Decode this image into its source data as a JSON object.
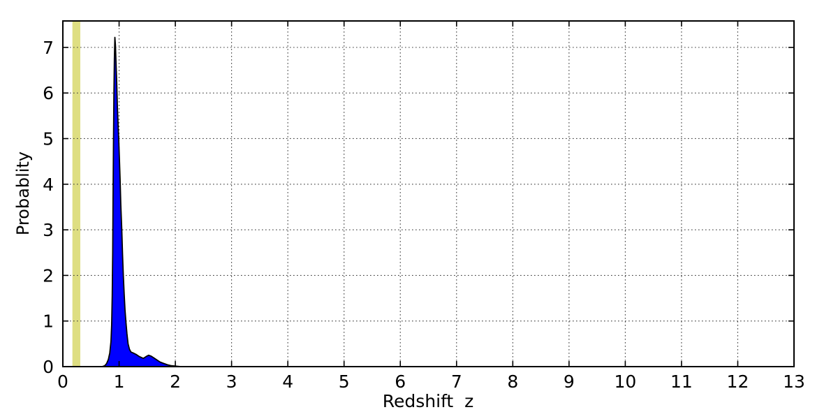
{
  "chart_data": {
    "type": "area",
    "title": "",
    "xlabel": "Redshift  z",
    "ylabel": "Probablity",
    "xlim": [
      0,
      13
    ],
    "ylim": [
      0,
      7.58
    ],
    "xticks": [
      0,
      1,
      2,
      3,
      4,
      5,
      6,
      7,
      8,
      9,
      10,
      11,
      12,
      13
    ],
    "yticks": [
      0,
      1,
      2,
      3,
      4,
      5,
      6,
      7
    ],
    "xtick_labels": [
      "0",
      "1",
      "2",
      "3",
      "4",
      "5",
      "6",
      "7",
      "8",
      "9",
      "10",
      "11",
      "12",
      "13"
    ],
    "ytick_labels": [
      "0",
      "1",
      "2",
      "3",
      "4",
      "5",
      "6",
      "7"
    ],
    "grid": {
      "visible": true,
      "style": "dotted",
      "color": "#3d3d3d",
      "x_positions": [
        1,
        2,
        3,
        4,
        5,
        6,
        7,
        8,
        9,
        10,
        11,
        12
      ],
      "y_positions": [
        1,
        2,
        3,
        4,
        5,
        6,
        7
      ]
    },
    "legend": {
      "visible": false
    },
    "series": [
      {
        "name": "redshift-probability-density",
        "type": "filled-area",
        "fill_color": "#0000ff",
        "edge_color": "#000000",
        "peak": {
          "z": 0.925,
          "probability": 7.22
        },
        "points": [
          [
            0.7,
            0.0
          ],
          [
            0.745,
            0.02
          ],
          [
            0.78,
            0.07
          ],
          [
            0.81,
            0.16
          ],
          [
            0.835,
            0.3
          ],
          [
            0.855,
            0.55
          ],
          [
            0.868,
            0.92
          ],
          [
            0.878,
            1.55
          ],
          [
            0.886,
            2.5
          ],
          [
            0.893,
            3.7
          ],
          [
            0.9,
            4.9
          ],
          [
            0.908,
            5.95
          ],
          [
            0.916,
            6.75
          ],
          [
            0.925,
            7.22
          ],
          [
            0.935,
            7.05
          ],
          [
            0.947,
            6.6
          ],
          [
            0.958,
            6.2
          ],
          [
            0.97,
            5.7
          ],
          [
            0.982,
            5.3
          ],
          [
            0.994,
            4.95
          ],
          [
            1.005,
            4.6
          ],
          [
            1.018,
            4.1
          ],
          [
            1.03,
            3.55
          ],
          [
            1.048,
            3.0
          ],
          [
            1.062,
            2.45
          ],
          [
            1.075,
            2.0
          ],
          [
            1.09,
            1.6
          ],
          [
            1.105,
            1.25
          ],
          [
            1.12,
            1.0
          ],
          [
            1.14,
            0.72
          ],
          [
            1.16,
            0.5
          ],
          [
            1.185,
            0.38
          ],
          [
            1.21,
            0.32
          ],
          [
            1.25,
            0.3
          ],
          [
            1.3,
            0.27
          ],
          [
            1.36,
            0.22
          ],
          [
            1.43,
            0.18
          ],
          [
            1.48,
            0.22
          ],
          [
            1.525,
            0.25
          ],
          [
            1.57,
            0.23
          ],
          [
            1.62,
            0.19
          ],
          [
            1.68,
            0.14
          ],
          [
            1.73,
            0.1
          ],
          [
            1.79,
            0.07
          ],
          [
            1.86,
            0.04
          ],
          [
            1.93,
            0.02
          ],
          [
            2.01,
            0.01
          ],
          [
            2.1,
            0.0
          ]
        ]
      }
    ],
    "annotations": [
      {
        "name": "highlight-band",
        "type": "vertical-band",
        "z_min": 0.17,
        "z_max": 0.31,
        "z_center": 0.24,
        "color": "#dede82"
      }
    ],
    "colors": {
      "background": "#ffffff",
      "frame": "#000000",
      "fill": "#0000ff",
      "band": "#dede82",
      "grid": "#3d3d3d",
      "text": "#000000"
    }
  }
}
